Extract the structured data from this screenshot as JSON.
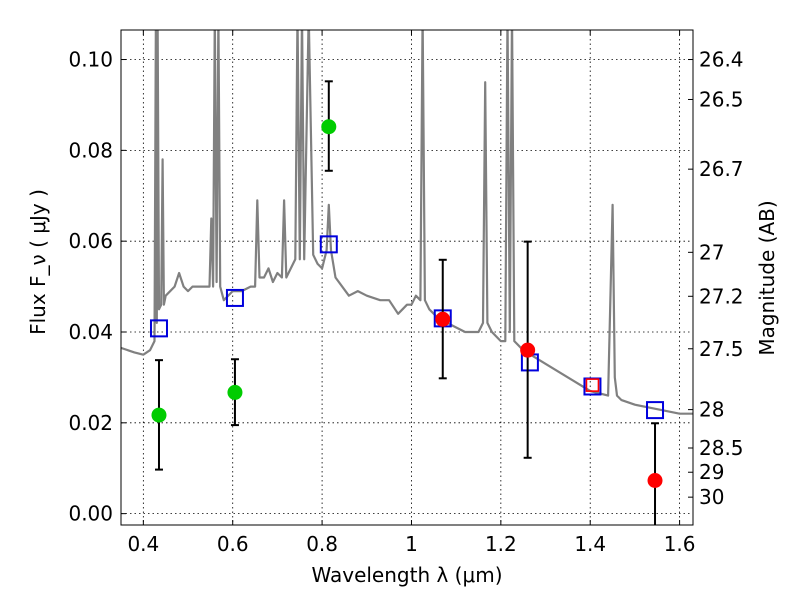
{
  "chart_data": {
    "type": "scatter",
    "xlabel": "Wavelength  λ (μm)",
    "ylabel": "Flux  F_ν  ( μJy )",
    "y2label": "Magnitude (AB)",
    "xlim": [
      0.35,
      1.63
    ],
    "ylim": [
      -0.0025,
      0.1065
    ],
    "grid": true,
    "x_ticks": [
      "0.4",
      "0.6",
      "0.8",
      "1",
      "1.2",
      "1.4",
      "1.6"
    ],
    "x_tick_values": [
      0.4,
      0.6,
      0.8,
      1.0,
      1.2,
      1.4,
      1.6
    ],
    "y_ticks": [
      "0.00",
      "0.02",
      "0.04",
      "0.06",
      "0.08",
      "0.10"
    ],
    "y_tick_values": [
      0.0,
      0.02,
      0.04,
      0.06,
      0.08,
      0.1
    ],
    "mag_ticks": [
      "26.4",
      "26.5",
      "26.7",
      "27",
      "27.2",
      "27.5",
      "28",
      "28.5",
      "29",
      "30"
    ],
    "mag_tick_values": [
      26.4,
      26.5,
      26.7,
      27.0,
      27.2,
      27.5,
      28.0,
      28.5,
      29.0,
      30.0
    ],
    "template_spectrum": {
      "name": "",
      "color": "#808080",
      "x": [
        0.35,
        0.38,
        0.4,
        0.415,
        0.425,
        0.428,
        0.43,
        0.432,
        0.435,
        0.44,
        0.443,
        0.446,
        0.45,
        0.47,
        0.48,
        0.49,
        0.5,
        0.51,
        0.53,
        0.548,
        0.552,
        0.556,
        0.56,
        0.564,
        0.568,
        0.572,
        0.58,
        0.6,
        0.62,
        0.64,
        0.65,
        0.655,
        0.66,
        0.67,
        0.68,
        0.69,
        0.7,
        0.71,
        0.715,
        0.72,
        0.74,
        0.745,
        0.75,
        0.755,
        0.76,
        0.77,
        0.78,
        0.79,
        0.8,
        0.81,
        0.815,
        0.82,
        0.83,
        0.86,
        0.88,
        0.9,
        0.93,
        0.95,
        0.97,
        0.99,
        1.0,
        1.01,
        1.02,
        1.025,
        1.03,
        1.04,
        1.06,
        1.08,
        1.1,
        1.12,
        1.15,
        1.16,
        1.165,
        1.17,
        1.18,
        1.2,
        1.21,
        1.215,
        1.22,
        1.225,
        1.23,
        1.25,
        1.3,
        1.35,
        1.4,
        1.44,
        1.45,
        1.455,
        1.46,
        1.47,
        1.5,
        1.55,
        1.6,
        1.63
      ],
      "y": [
        0.0365,
        0.0355,
        0.035,
        0.036,
        0.038,
        0.11,
        0.042,
        0.11,
        0.045,
        0.046,
        0.078,
        0.046,
        0.048,
        0.05,
        0.053,
        0.05,
        0.049,
        0.05,
        0.05,
        0.05,
        0.065,
        0.05,
        0.11,
        0.051,
        0.11,
        0.05,
        0.047,
        0.049,
        0.049,
        0.05,
        0.05,
        0.069,
        0.052,
        0.052,
        0.054,
        0.051,
        0.053,
        0.052,
        0.069,
        0.052,
        0.056,
        0.11,
        0.056,
        0.11,
        0.056,
        0.11,
        0.057,
        0.055,
        0.054,
        0.058,
        0.068,
        0.058,
        0.052,
        0.048,
        0.049,
        0.048,
        0.047,
        0.047,
        0.044,
        0.046,
        0.046,
        0.048,
        0.047,
        0.11,
        0.047,
        0.045,
        0.043,
        0.042,
        0.041,
        0.04,
        0.04,
        0.042,
        0.095,
        0.042,
        0.04,
        0.038,
        0.038,
        0.11,
        0.04,
        0.11,
        0.038,
        0.036,
        0.033,
        0.03,
        0.027,
        0.026,
        0.068,
        0.03,
        0.026,
        0.025,
        0.024,
        0.023,
        0.022,
        0.022
      ]
    },
    "model_squares": {
      "name": "",
      "color": "#0000dd",
      "x": [
        0.435,
        0.605,
        0.815,
        1.07,
        1.265,
        1.405,
        1.545
      ],
      "y": [
        0.0408,
        0.0475,
        0.0593,
        0.043,
        0.0333,
        0.028,
        0.0228
      ]
    },
    "green_points": {
      "name": "",
      "color": "#00cc00",
      "x": [
        0.435,
        0.605,
        0.815
      ],
      "y": [
        0.0217,
        0.0267,
        0.0852
      ],
      "yerr_low": [
        0.0097,
        0.0195,
        0.0755
      ],
      "yerr_high": [
        0.0338,
        0.034,
        0.0952
      ]
    },
    "red_points": {
      "name": "",
      "color": "#ff0000",
      "x": [
        1.07,
        1.26,
        1.405,
        1.545
      ],
      "y": [
        0.0428,
        0.036,
        0.0283,
        0.0073
      ],
      "yerr_low": [
        0.0298,
        0.0123,
        null,
        -0.003
      ],
      "yerr_high": [
        0.0559,
        0.0599,
        null,
        0.0199
      ],
      "hollow": [
        false,
        false,
        true,
        false
      ]
    }
  }
}
